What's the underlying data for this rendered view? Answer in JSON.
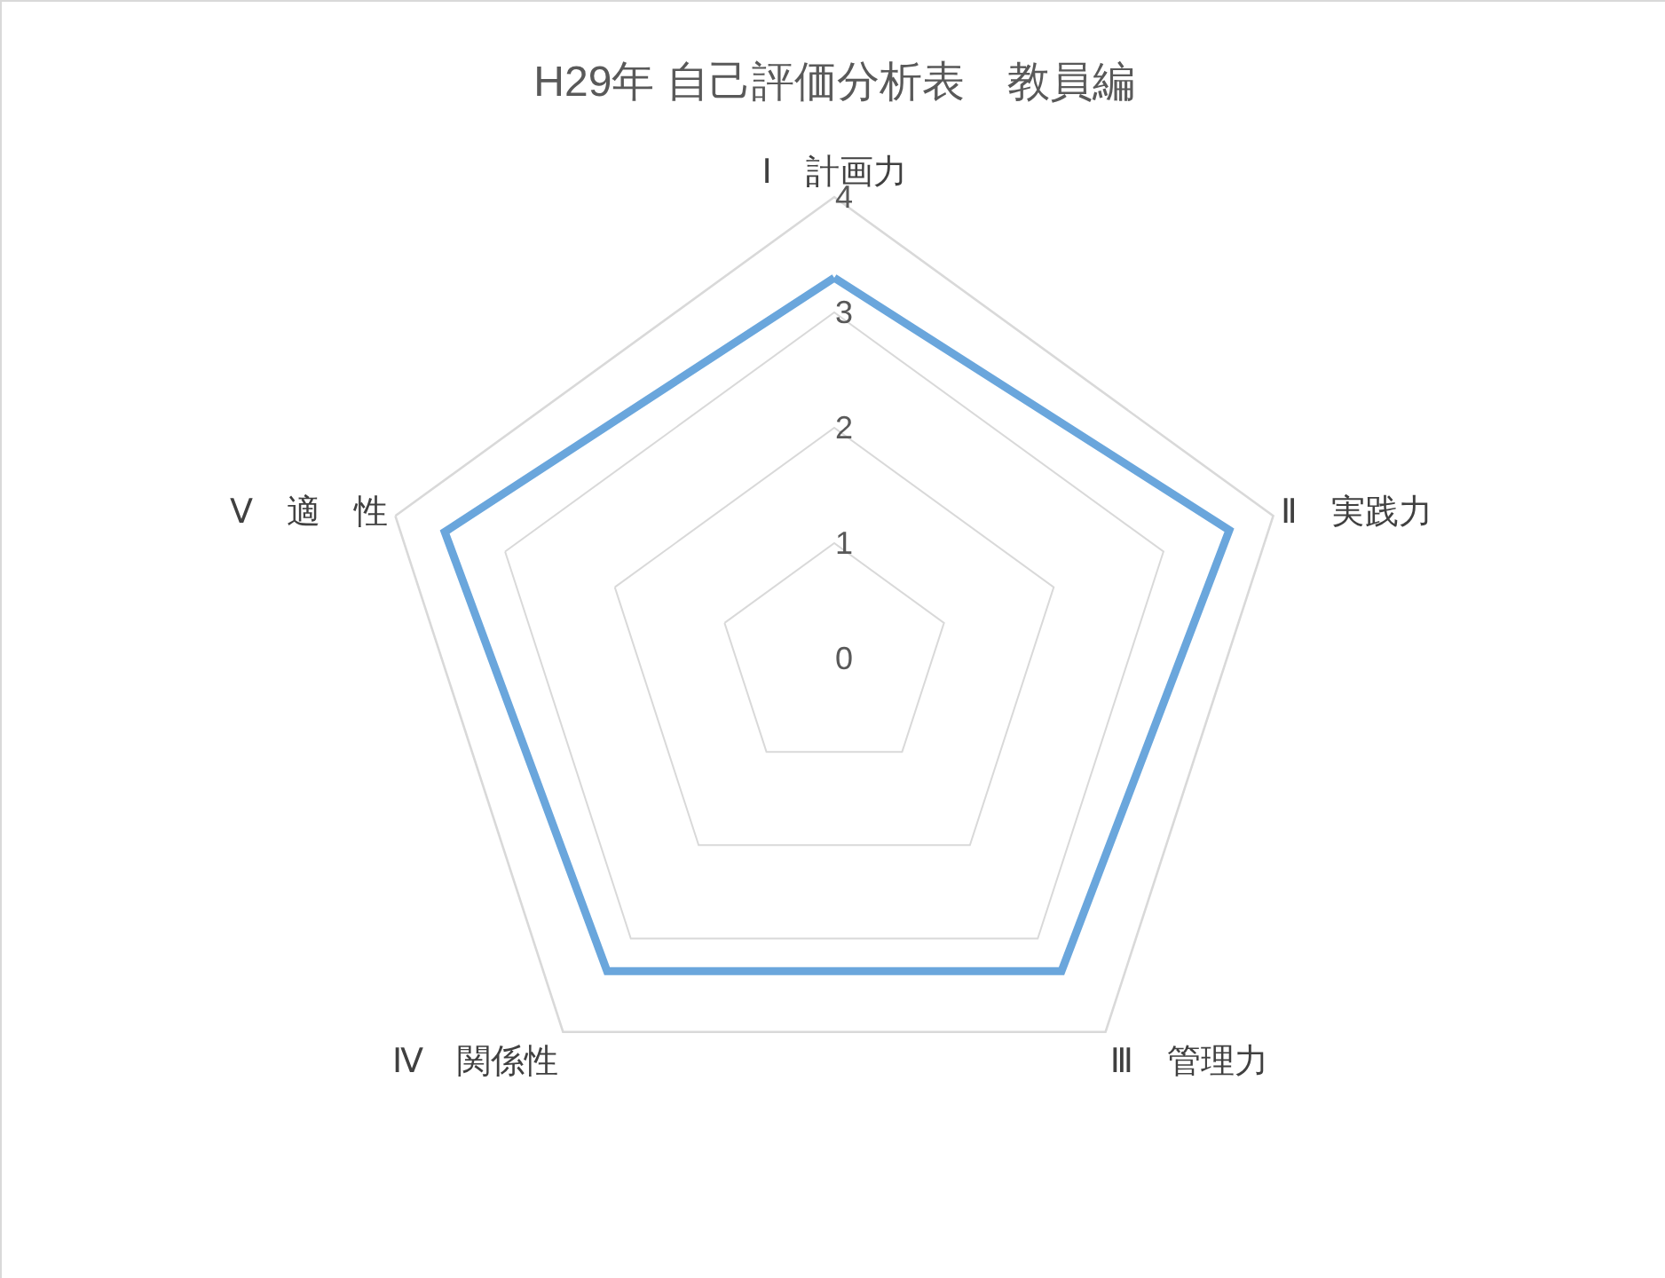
{
  "chart_data": {
    "type": "radar",
    "title": "H29年 自己評価分析表　教員編",
    "categories": [
      "Ⅰ　計画力",
      "Ⅱ　実践力",
      "Ⅲ　管理力",
      "Ⅳ　関係性",
      "Ⅴ　適　性"
    ],
    "series": [
      {
        "color": "#6aa6dc",
        "values": [
          3.3,
          3.6,
          3.35,
          3.35,
          3.55
        ]
      }
    ],
    "ylim": [
      0,
      4
    ],
    "yticks": [
      0,
      1,
      2,
      3,
      4
    ],
    "grid": true,
    "marker": "none",
    "line_style": "solid"
  }
}
